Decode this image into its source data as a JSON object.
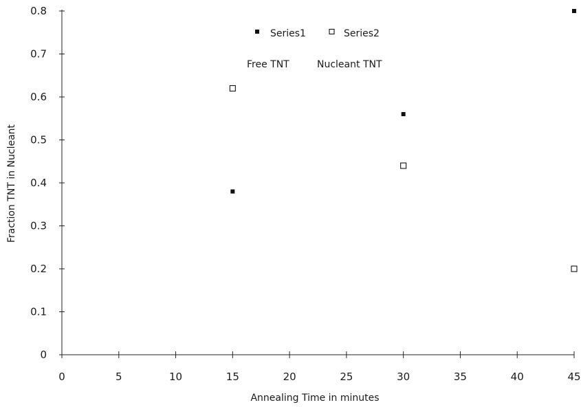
{
  "chart_data": {
    "type": "scatter",
    "title": "",
    "xlabel": "Annealing Time in minutes",
    "ylabel": "Fraction TNT in Nucleant",
    "xlim": [
      0,
      45
    ],
    "ylim": [
      0,
      0.8
    ],
    "xticks": [
      "0",
      "5",
      "10",
      "15",
      "20",
      "25",
      "30",
      "35",
      "40",
      "45"
    ],
    "yticks": [
      "0",
      "0.1",
      "0.2",
      "0.3",
      "0.4",
      "0.5",
      "0.6",
      "0.7",
      "0.8"
    ],
    "grid": false,
    "legend_position": "top-center",
    "annotations": [
      "Free TNT",
      "Nucleant TNT"
    ],
    "series": [
      {
        "name": "Series1",
        "marker": "filled-square",
        "color": "#111111",
        "x": [
          15,
          30,
          45
        ],
        "y": [
          0.38,
          0.56,
          0.8
        ]
      },
      {
        "name": "Series2",
        "marker": "open-square",
        "color": "#111111",
        "x": [
          15,
          30,
          45
        ],
        "y": [
          0.62,
          0.44,
          0.2
        ]
      }
    ]
  }
}
